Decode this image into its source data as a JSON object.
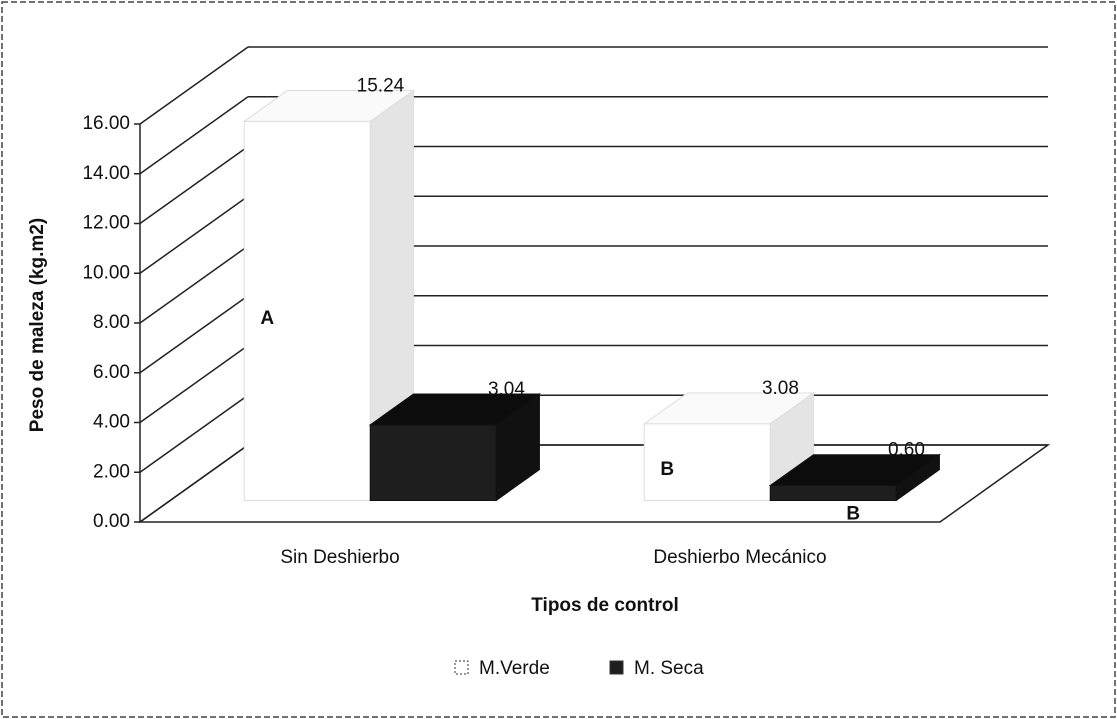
{
  "chart_data": {
    "type": "bar3d",
    "y_label": "Peso de maleza (kg.m2)",
    "x_label": "Tipos de control",
    "categories": [
      "Sin Deshierbo",
      "Deshierbo Mecánico"
    ],
    "series": [
      {
        "name": "M.Verde",
        "color": "#ffffff",
        "values": [
          15.24,
          3.08
        ],
        "value_labels": [
          "15.24",
          "3.08"
        ],
        "letters": [
          "A",
          "B"
        ]
      },
      {
        "name": "M. Seca",
        "color": "#1e1e1e",
        "values": [
          3.04,
          0.6
        ],
        "value_labels": [
          "3.04",
          "0.60"
        ],
        "letters": [
          null,
          "B"
        ]
      }
    ],
    "ylim": [
      0,
      16
    ],
    "yticks": [
      {
        "value": 0,
        "label": "0.00"
      },
      {
        "value": 2,
        "label": "2.00"
      },
      {
        "value": 4,
        "label": "4.00"
      },
      {
        "value": 6,
        "label": "6.00"
      },
      {
        "value": 8,
        "label": "8.00"
      },
      {
        "value": 10,
        "label": "10.00"
      },
      {
        "value": 12,
        "label": "12.00"
      },
      {
        "value": 14,
        "label": "14.00"
      },
      {
        "value": 16,
        "label": "16.00"
      }
    ],
    "grid": true,
    "legend": "bottom"
  }
}
